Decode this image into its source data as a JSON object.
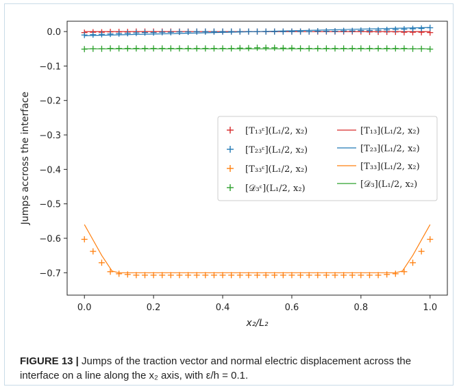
{
  "chart_data": {
    "type": "line",
    "xlabel": "x₂/L₂",
    "ylabel": "Jumps accross the interface",
    "xlim": [
      -0.05,
      1.05
    ],
    "ylim": [
      -0.765,
      0.03
    ],
    "xticks": [
      0.0,
      0.2,
      0.4,
      0.6,
      0.8,
      1.0
    ],
    "xtick_labels": [
      "0.0",
      "0.2",
      "0.4",
      "0.6",
      "0.8",
      "1.0"
    ],
    "yticks": [
      0.0,
      -0.1,
      -0.2,
      -0.3,
      -0.4,
      -0.5,
      -0.6,
      -0.7
    ],
    "ytick_labels": [
      "0.0",
      "−0.1",
      "−0.2",
      "−0.3",
      "−0.4",
      "−0.5",
      "−0.6",
      "−0.7"
    ],
    "grid": false,
    "legend_position": "center-right",
    "x_samples": [
      0.0,
      0.025,
      0.05,
      0.075,
      0.1,
      0.125,
      0.15,
      0.175,
      0.2,
      0.225,
      0.25,
      0.275,
      0.3,
      0.325,
      0.35,
      0.375,
      0.4,
      0.425,
      0.45,
      0.475,
      0.5,
      0.525,
      0.55,
      0.575,
      0.6,
      0.625,
      0.65,
      0.675,
      0.7,
      0.725,
      0.75,
      0.775,
      0.8,
      0.825,
      0.85,
      0.875,
      0.9,
      0.925,
      0.95,
      0.975,
      1.0
    ],
    "series": [
      {
        "name": "[T₁₃ᵋ](L₁/2, x₂)",
        "kind": "markers",
        "color": "#d62728",
        "values": [
          -0.003,
          -0.002,
          -0.002,
          -0.001,
          -0.001,
          -0.001,
          0.0,
          0.0,
          0.0,
          0.0,
          0.0,
          0.0,
          0.0,
          0.0,
          0.0,
          0.0,
          0.0,
          0.0,
          0.0,
          0.0,
          0.0,
          0.0,
          0.0,
          0.0,
          0.0,
          0.0,
          0.0,
          0.0,
          0.0,
          0.0,
          0.0,
          0.0,
          0.0,
          -0.001,
          -0.001,
          -0.001,
          -0.001,
          -0.002,
          -0.002,
          -0.002,
          -0.003
        ]
      },
      {
        "name": "[T₂₃ᵋ](L₁/2, x₂)",
        "kind": "markers",
        "color": "#1f77b4",
        "values": [
          -0.01,
          -0.009,
          -0.008,
          -0.007,
          -0.006,
          -0.005,
          -0.004,
          -0.003,
          -0.003,
          -0.002,
          -0.002,
          -0.001,
          -0.001,
          0.0,
          0.0,
          0.0,
          0.0,
          0.0,
          0.0,
          0.0,
          0.0,
          0.0,
          0.0,
          0.0,
          0.0,
          0.0,
          0.0,
          0.001,
          0.001,
          0.001,
          0.002,
          0.002,
          0.003,
          0.003,
          0.004,
          0.005,
          0.006,
          0.007,
          0.008,
          0.009,
          0.011
        ]
      },
      {
        "name": "[T₃₃ᵋ](L₁/2, x₂)",
        "kind": "markers",
        "color": "#ff7f0e",
        "values": [
          -0.603,
          -0.638,
          -0.671,
          -0.697,
          -0.703,
          -0.705,
          -0.707,
          -0.707,
          -0.707,
          -0.707,
          -0.707,
          -0.707,
          -0.707,
          -0.707,
          -0.707,
          -0.707,
          -0.707,
          -0.707,
          -0.707,
          -0.707,
          -0.707,
          -0.707,
          -0.707,
          -0.707,
          -0.707,
          -0.707,
          -0.707,
          -0.707,
          -0.707,
          -0.707,
          -0.707,
          -0.707,
          -0.707,
          -0.707,
          -0.707,
          -0.705,
          -0.703,
          -0.697,
          -0.671,
          -0.638,
          -0.603
        ]
      },
      {
        "name": "[𝒟₃ᵋ](L₁/2, x₂)",
        "kind": "markers",
        "color": "#2ca02c",
        "values": [
          -0.051,
          -0.05,
          -0.05,
          -0.049,
          -0.049,
          -0.049,
          -0.049,
          -0.049,
          -0.049,
          -0.049,
          -0.049,
          -0.049,
          -0.049,
          -0.049,
          -0.049,
          -0.049,
          -0.049,
          -0.049,
          -0.048,
          -0.048,
          -0.047,
          -0.047,
          -0.047,
          -0.048,
          -0.048,
          -0.049,
          -0.049,
          -0.049,
          -0.049,
          -0.049,
          -0.049,
          -0.049,
          -0.049,
          -0.049,
          -0.049,
          -0.049,
          -0.049,
          -0.049,
          -0.05,
          -0.05,
          -0.051
        ]
      },
      {
        "name": "[T₁₃](L₁/2, x₂)",
        "kind": "line",
        "color": "#d62728",
        "x": [
          0.0,
          0.5,
          1.0
        ],
        "values": [
          0.0,
          0.0,
          0.0
        ]
      },
      {
        "name": "[T₂₃](L₁/2, x₂)",
        "kind": "line",
        "color": "#1f77b4",
        "x": [
          0.0,
          0.5,
          1.0
        ],
        "values": [
          -0.012,
          0.0,
          0.012
        ]
      },
      {
        "name": "[T₃₃](L₁/2, x₂)",
        "kind": "line",
        "color": "#ff7f0e",
        "x": [
          0.0,
          0.05,
          0.08,
          0.1,
          0.15,
          0.85,
          0.9,
          0.92,
          0.95,
          1.0
        ],
        "values": [
          -0.56,
          -0.65,
          -0.695,
          -0.7,
          -0.7,
          -0.7,
          -0.7,
          -0.695,
          -0.65,
          -0.56
        ]
      },
      {
        "name": "[𝒟₃](L₁/2, x₂)",
        "kind": "line",
        "color": "#2ca02c",
        "x": [
          0.0,
          0.5,
          1.0
        ],
        "values": [
          -0.05,
          -0.05,
          -0.05
        ]
      }
    ]
  },
  "caption": {
    "label": "FIGURE 13 |",
    "text": " Jumps of the traction vector and normal electric displacement across the interface on a line along the x₂ axis, with ε/h = 0.1."
  }
}
